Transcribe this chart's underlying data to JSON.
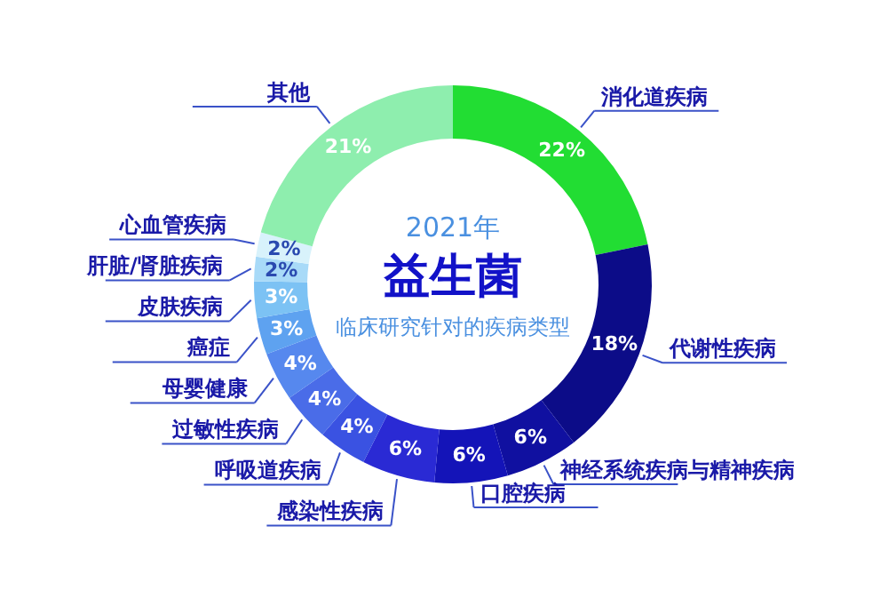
{
  "chart_data": {
    "type": "donut",
    "title": "益生菌",
    "subtitle": "临床研究针对的疾病类型",
    "annotations": [
      "2021年"
    ],
    "categories": [
      "消化道疾病",
      "代谢性疾病",
      "神经系统疾病与精神疾病",
      "口腔疾病",
      "感染性疾病",
      "呼吸道疾病",
      "过敏性疾病",
      "母婴健康",
      "癌症",
      "皮肤疾病",
      "肝脏/肾脏疾病",
      "心血管疾病",
      "其他"
    ],
    "values": [
      22,
      18,
      6,
      6,
      6,
      4,
      4,
      4,
      3,
      3,
      2,
      2,
      21
    ],
    "value_labels": [
      "22%",
      "18%",
      "6%",
      "6%",
      "6%",
      "4%",
      "4%",
      "4%",
      "3%",
      "3%",
      "2%",
      "2%",
      "21%"
    ],
    "colors": [
      "#22dd33",
      "#0c0c88",
      "#1010a0",
      "#1414b8",
      "#2a2ad4",
      "#3a52e2",
      "#4a6ce8",
      "#5688ee",
      "#5ea2f0",
      "#7cc2f4",
      "#a8daf8",
      "#d8f2fb",
      "#8eeeae"
    ]
  }
}
